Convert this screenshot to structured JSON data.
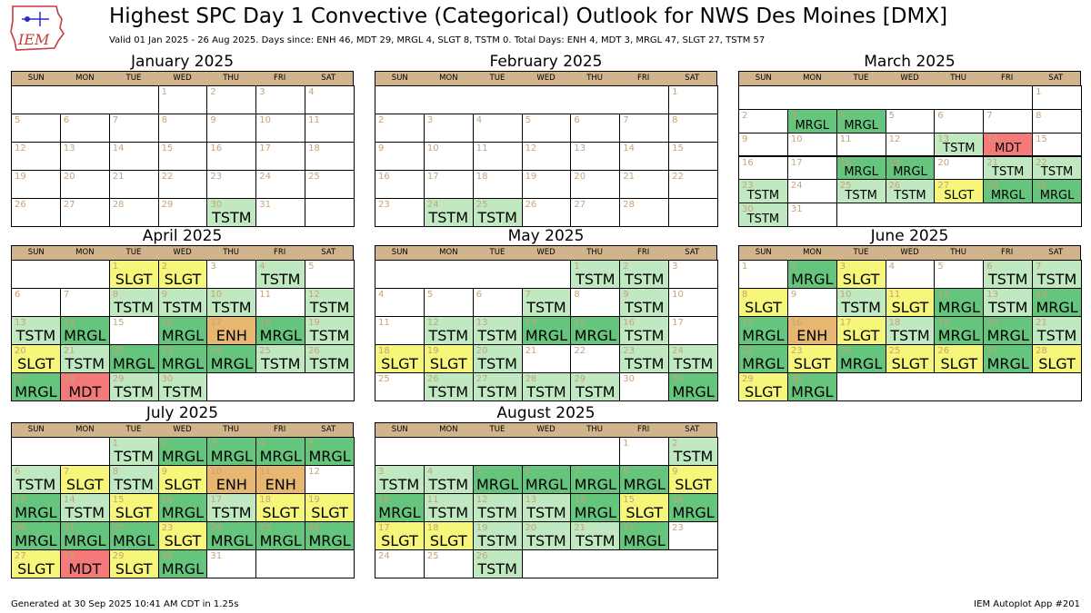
{
  "header": {
    "logo_text": "IEM",
    "title": "Highest SPC Day 1 Convective (Categorical) Outlook for NWS Des Moines [DMX]",
    "subtitle": "Valid 01 Jan 2025 - 26 Aug 2025. Days since: ENH 46, MDT 29, MRGL 4, SLGT 8, TSTM 0. Total Days: ENH 4, MDT 3, MRGL 47, SLGT 27, TSTM 57"
  },
  "footer": {
    "left": "Generated at 30 Sep 2025 10:41 AM CDT in 1.25s",
    "right": "IEM Autoplot App #201"
  },
  "weekday_labels": [
    "SUN",
    "MON",
    "TUE",
    "WED",
    "THU",
    "FRI",
    "SAT"
  ],
  "category_colors": {
    "TSTM": "#c1e9c1",
    "MRGL": "#66c57d",
    "SLGT": "#f6f67b",
    "ENH": "#e7b772",
    "MDT": "#f47a7a"
  },
  "chart_data": {
    "type": "table",
    "title": "Highest SPC Day 1 Convective (Categorical) Outlook for NWS Des Moines [DMX]",
    "category_order": [
      "TSTM",
      "MRGL",
      "SLGT",
      "ENH",
      "MDT"
    ],
    "totals": {
      "ENH": 4,
      "MDT": 3,
      "MRGL": 47,
      "SLGT": 27,
      "TSTM": 57
    },
    "days_since": {
      "ENH": 46,
      "MDT": 29,
      "MRGL": 4,
      "SLGT": 8,
      "TSTM": 0
    },
    "months": [
      {
        "name": "January 2025",
        "start_weekday": 3,
        "days": 31,
        "outlooks": {
          "30": "TSTM"
        }
      },
      {
        "name": "February 2025",
        "start_weekday": 6,
        "days": 28,
        "outlooks": {
          "24": "TSTM",
          "25": "TSTM"
        }
      },
      {
        "name": "March 2025",
        "start_weekday": 6,
        "days": 31,
        "outlooks": {
          "3": "MRGL",
          "4": "MRGL",
          "13": "TSTM",
          "14": "MDT",
          "18": "MRGL",
          "19": "MRGL",
          "21": "TSTM",
          "22": "TSTM",
          "23": "TSTM",
          "25": "TSTM",
          "26": "TSTM",
          "27": "SLGT",
          "28": "MRGL",
          "29": "MRGL",
          "30": "TSTM"
        }
      },
      {
        "name": "April 2025",
        "start_weekday": 2,
        "days": 30,
        "outlooks": {
          "1": "SLGT",
          "2": "SLGT",
          "4": "TSTM",
          "8": "TSTM",
          "9": "TSTM",
          "10": "TSTM",
          "12": "TSTM",
          "13": "TSTM",
          "14": "MRGL",
          "16": "MRGL",
          "17": "ENH",
          "18": "MRGL",
          "19": "TSTM",
          "20": "SLGT",
          "21": "TSTM",
          "22": "MRGL",
          "23": "MRGL",
          "24": "MRGL",
          "25": "TSTM",
          "26": "TSTM",
          "27": "MRGL",
          "28": "MDT",
          "29": "TSTM",
          "30": "TSTM"
        }
      },
      {
        "name": "May 2025",
        "start_weekday": 4,
        "days": 31,
        "outlooks": {
          "1": "TSTM",
          "2": "TSTM",
          "7": "TSTM",
          "9": "TSTM",
          "12": "TSTM",
          "13": "TSTM",
          "14": "MRGL",
          "15": "MRGL",
          "16": "TSTM",
          "18": "SLGT",
          "19": "SLGT",
          "20": "TSTM",
          "23": "TSTM",
          "24": "TSTM",
          "26": "TSTM",
          "27": "TSTM",
          "28": "TSTM",
          "29": "TSTM",
          "31": "MRGL"
        }
      },
      {
        "name": "June 2025",
        "start_weekday": 0,
        "days": 30,
        "outlooks": {
          "2": "MRGL",
          "3": "SLGT",
          "6": "TSTM",
          "7": "TSTM",
          "8": "SLGT",
          "10": "TSTM",
          "11": "SLGT",
          "12": "MRGL",
          "13": "TSTM",
          "14": "MRGL",
          "15": "MRGL",
          "16": "ENH",
          "17": "SLGT",
          "18": "TSTM",
          "19": "MRGL",
          "20": "MRGL",
          "21": "TSTM",
          "22": "MRGL",
          "23": "SLGT",
          "24": "MRGL",
          "25": "SLGT",
          "26": "SLGT",
          "27": "MRGL",
          "28": "SLGT",
          "29": "SLGT",
          "30": "MRGL"
        }
      },
      {
        "name": "July 2025",
        "start_weekday": 2,
        "days": 31,
        "outlooks": {
          "1": "TSTM",
          "2": "MRGL",
          "3": "MRGL",
          "4": "MRGL",
          "5": "MRGL",
          "6": "TSTM",
          "7": "SLGT",
          "8": "TSTM",
          "9": "SLGT",
          "10": "ENH",
          "11": "ENH",
          "13": "MRGL",
          "14": "TSTM",
          "15": "SLGT",
          "16": "MRGL",
          "17": "TSTM",
          "18": "SLGT",
          "19": "SLGT",
          "20": "MRGL",
          "21": "MRGL",
          "22": "MRGL",
          "23": "SLGT",
          "24": "MRGL",
          "25": "MRGL",
          "26": "MRGL",
          "27": "SLGT",
          "28": "MDT",
          "29": "SLGT",
          "30": "MRGL"
        }
      },
      {
        "name": "August 2025",
        "start_weekday": 5,
        "days": 26,
        "outlooks": {
          "2": "TSTM",
          "3": "TSTM",
          "4": "TSTM",
          "5": "MRGL",
          "6": "MRGL",
          "7": "MRGL",
          "8": "MRGL",
          "9": "SLGT",
          "10": "MRGL",
          "11": "TSTM",
          "12": "TSTM",
          "13": "TSTM",
          "14": "MRGL",
          "15": "SLGT",
          "16": "MRGL",
          "17": "SLGT",
          "18": "SLGT",
          "19": "TSTM",
          "20": "TSTM",
          "21": "TSTM",
          "22": "MRGL",
          "26": "TSTM"
        }
      }
    ]
  }
}
